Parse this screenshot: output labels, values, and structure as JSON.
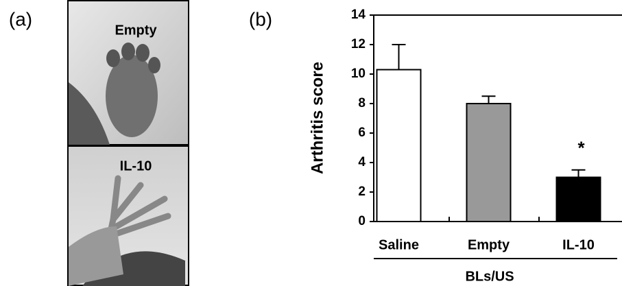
{
  "panel_a": {
    "label": "(a)",
    "photos": [
      {
        "label": "Empty"
      },
      {
        "label": "IL-10"
      }
    ]
  },
  "chart_data": {
    "type": "bar",
    "panel_label": "(b)",
    "ylabel": "Arthritis score",
    "xlabel": "BLs/US",
    "categories": [
      "Saline",
      "Empty",
      "IL-10"
    ],
    "values": [
      10.3,
      8.0,
      3.0
    ],
    "errors": [
      1.7,
      0.5,
      0.5
    ],
    "colors": [
      "#ffffff",
      "#999999",
      "#000000"
    ],
    "annotation": "*",
    "ylim": [
      0,
      14
    ],
    "yticks": [
      0,
      2,
      4,
      6,
      8,
      10,
      12,
      14
    ]
  }
}
